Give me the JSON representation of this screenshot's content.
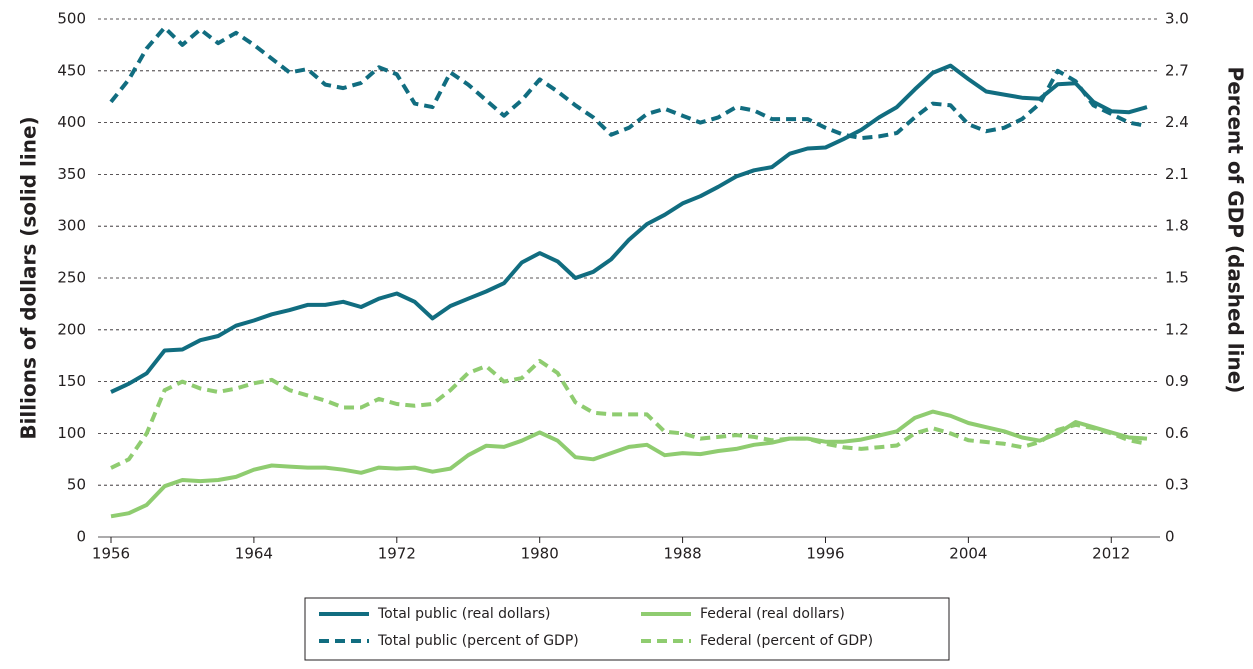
{
  "chart_data": {
    "type": "line",
    "y_label": "Billions of dollars (solid line)",
    "y2_label": "Percent of GDP (dashed line)",
    "x": [
      1956,
      1957,
      1958,
      1959,
      1960,
      1961,
      1962,
      1963,
      1964,
      1965,
      1966,
      1967,
      1968,
      1969,
      1970,
      1971,
      1972,
      1973,
      1974,
      1975,
      1976,
      1977,
      1978,
      1979,
      1980,
      1981,
      1982,
      1983,
      1984,
      1985,
      1986,
      1987,
      1988,
      1989,
      1990,
      1991,
      1992,
      1993,
      1994,
      1995,
      1996,
      1997,
      1998,
      1999,
      2000,
      2001,
      2002,
      2003,
      2004,
      2005,
      2006,
      2007,
      2008,
      2009,
      2010,
      2011,
      2012,
      2013,
      2014
    ],
    "xlim": [
      1956,
      2014
    ],
    "xticks": [
      1956,
      1964,
      1972,
      1980,
      1988,
      1996,
      2004,
      2012
    ],
    "ylim": [
      0,
      500
    ],
    "yticks": [
      0,
      50,
      100,
      150,
      200,
      250,
      300,
      350,
      400,
      450,
      500
    ],
    "y2lim": [
      0,
      3.0
    ],
    "y2ticks": [
      0,
      0.3,
      0.6,
      0.9,
      1.2,
      1.5,
      1.8,
      2.1,
      2.4,
      2.7,
      {
        "value": 3,
        "label": "3.0"
      }
    ],
    "grid": true,
    "legend": "bottom",
    "series": [
      {
        "name": "Total public (real dollars)",
        "color": "#116d80",
        "style": "solid",
        "values": [
          140,
          148,
          158,
          180,
          181,
          190,
          194,
          204,
          209,
          215,
          219,
          224,
          224,
          227,
          222,
          230,
          235,
          227,
          211,
          223,
          230,
          237,
          245,
          265,
          274,
          266,
          250,
          256,
          268,
          287,
          302,
          311,
          322,
          329,
          338,
          348,
          354,
          357,
          370,
          375,
          376,
          384,
          393,
          405,
          415,
          432,
          448,
          455,
          442,
          430,
          427,
          424,
          423,
          437,
          438,
          420,
          411,
          410,
          415
        ]
      },
      {
        "name": "Total public (percent of GDP)",
        "color": "#116d80",
        "style": "dashed",
        "axis": "y2",
        "values": [
          2.52,
          2.65,
          2.83,
          2.95,
          2.85,
          2.94,
          2.86,
          2.92,
          2.85,
          2.77,
          2.69,
          2.71,
          2.62,
          2.6,
          2.63,
          2.72,
          2.68,
          2.51,
          2.49,
          2.69,
          2.62,
          2.53,
          2.44,
          2.53,
          2.65,
          2.58,
          2.5,
          2.43,
          2.33,
          2.37,
          2.45,
          2.48,
          2.44,
          2.4,
          2.43,
          2.49,
          2.47,
          2.42,
          2.42,
          2.42,
          2.37,
          2.33,
          2.31,
          2.32,
          2.34,
          2.43,
          2.51,
          2.5,
          2.39,
          2.35,
          2.37,
          2.42,
          2.51,
          2.7,
          2.64,
          2.5,
          2.45,
          2.4,
          2.38
        ]
      },
      {
        "name": "Federal (real dollars)",
        "color": "#8fcc70",
        "style": "solid",
        "values": [
          20,
          23,
          31,
          49,
          55,
          54,
          55,
          58,
          65,
          69,
          68,
          67,
          67,
          65,
          62,
          67,
          66,
          67,
          63,
          66,
          79,
          88,
          87,
          93,
          101,
          93,
          77,
          75,
          81,
          87,
          89,
          79,
          81,
          80,
          83,
          85,
          89,
          91,
          95,
          95,
          92,
          92,
          94,
          98,
          102,
          115,
          121,
          117,
          110,
          106,
          102,
          96,
          93,
          100,
          111,
          106,
          101,
          96,
          95
        ]
      },
      {
        "name": "Federal (percent of GDP)",
        "color": "#8fcc70",
        "style": "dashed",
        "axis": "y2",
        "values": [
          0.4,
          0.45,
          0.6,
          0.85,
          0.9,
          0.86,
          0.84,
          0.86,
          0.89,
          0.91,
          0.85,
          0.82,
          0.79,
          0.75,
          0.75,
          0.8,
          0.77,
          0.76,
          0.77,
          0.85,
          0.95,
          0.99,
          0.9,
          0.92,
          1.02,
          0.95,
          0.78,
          0.72,
          0.71,
          0.71,
          0.71,
          0.61,
          0.6,
          0.57,
          0.58,
          0.59,
          0.58,
          0.56,
          0.57,
          0.57,
          0.54,
          0.52,
          0.51,
          0.52,
          0.53,
          0.6,
          0.63,
          0.6,
          0.56,
          0.55,
          0.54,
          0.52,
          0.55,
          0.62,
          0.65,
          0.63,
          0.6,
          0.56,
          0.54
        ]
      }
    ]
  }
}
